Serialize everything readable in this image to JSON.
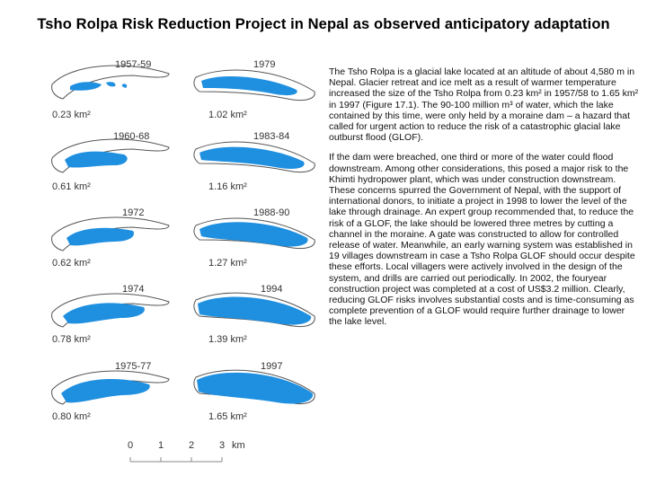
{
  "title": "Tsho Rolpa Risk Reduction Project in Nepal as observed anticipatory adaptation",
  "panels_left": [
    {
      "year": "1957-59",
      "area": "0.23 km²"
    },
    {
      "year": "1960-68",
      "area": "0.61 km²"
    },
    {
      "year": "1972",
      "area": "0.62 km²"
    },
    {
      "year": "1974",
      "area": "0.78 km²"
    },
    {
      "year": "1975-77",
      "area": "0.80 km²"
    }
  ],
  "panels_right": [
    {
      "year": "1979",
      "area": "1.02 km²"
    },
    {
      "year": "1983-84",
      "area": "1.16 km²"
    },
    {
      "year": "1988-90",
      "area": "1.27 km²"
    },
    {
      "year": "1994",
      "area": "1.39 km²"
    },
    {
      "year": "1997",
      "area": "1.65 km²"
    }
  ],
  "scale": {
    "t0": "0",
    "t1": "1",
    "t2": "2",
    "t3": "3",
    "unit": "km"
  },
  "paragraphs": [
    "The Tsho Rolpa is a glacial lake located at an altitude of about 4,580 m in Nepal. Glacier retreat and ice melt as a result of warmer temperature increased the size of the Tsho Rolpa from 0.23 km² in 1957/58 to 1.65 km² in 1997 (Figure 17.1). The 90-100 million m³ of water, which the lake contained by this time, were only held by a moraine dam – a hazard that called for urgent action to reduce the risk of a catastrophic glacial lake outburst flood (GLOF).",
    "If the dam were breached, one third or more of the water could flood downstream. Among other considerations, this posed a major risk to the Khimti hydropower plant, which was under construction downstream. These concerns spurred the Government of Nepal, with the support of international donors, to initiate a project in 1998 to lower the level of the lake through drainage. An expert group recommended that, to reduce the risk of a GLOF, the lake should be lowered three metres by cutting a channel in the moraine. A gate was constructed to allow for controlled release of water. Meanwhile, an early warning system was established in 19 villages downstream in case a Tsho Rolpa GLOF should occur despite these efforts. Local villagers were actively involved in the design of the system, and drills are carried out periodically. In 2002, the fouryear construction project was completed at a cost of US$3.2 million. Clearly, reducing GLOF risks involves substantial costs and is time-consuming as complete prevention of a GLOF would require further drainage to lower the lake level."
  ],
  "colors": {
    "lake": "#1f8fe0",
    "outline": "#555555"
  }
}
